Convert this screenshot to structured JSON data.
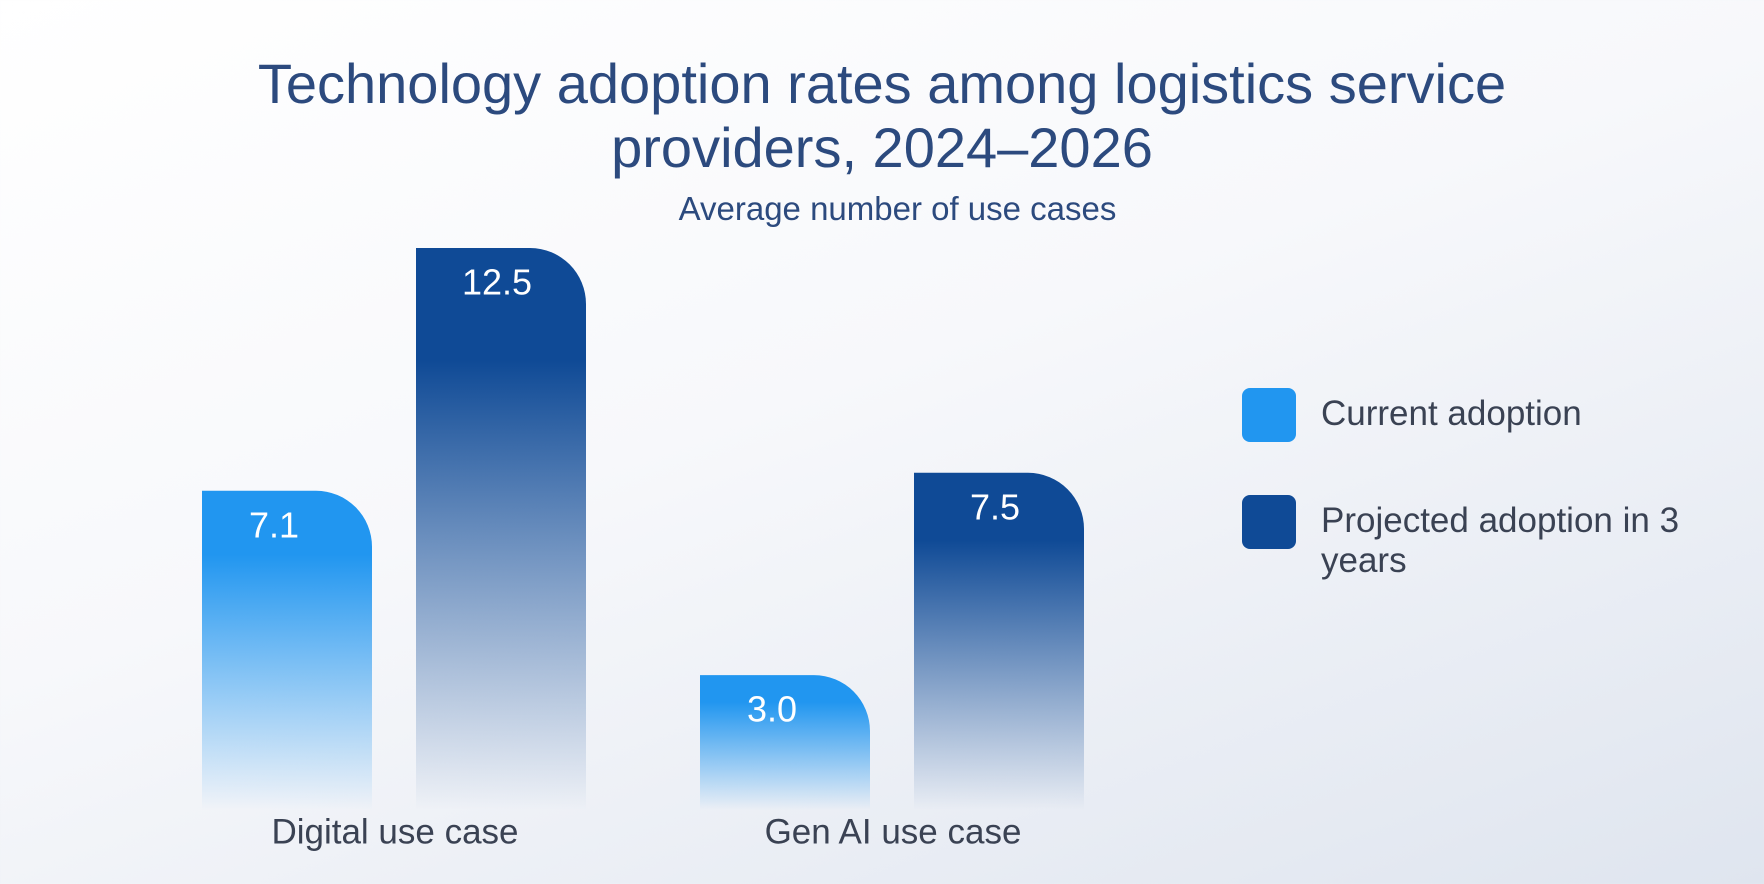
{
  "chart_data": {
    "type": "bar",
    "title": "Technology adoption rates among logistics service providers, 2024–2026",
    "subtitle": "Average number of use cases",
    "categories": [
      "Digital use case",
      "Gen AI use case"
    ],
    "series": [
      {
        "name": "Current adoption",
        "color": "#2196f0",
        "values": [
          7.1,
          3.0
        ],
        "value_labels": [
          "7.1",
          "3.0"
        ]
      },
      {
        "name": "Projected adoption in 3 years",
        "color": "#0f4a96",
        "values": [
          12.5,
          7.5
        ],
        "value_labels": [
          "12.5",
          "7.5"
        ]
      }
    ]
  }
}
